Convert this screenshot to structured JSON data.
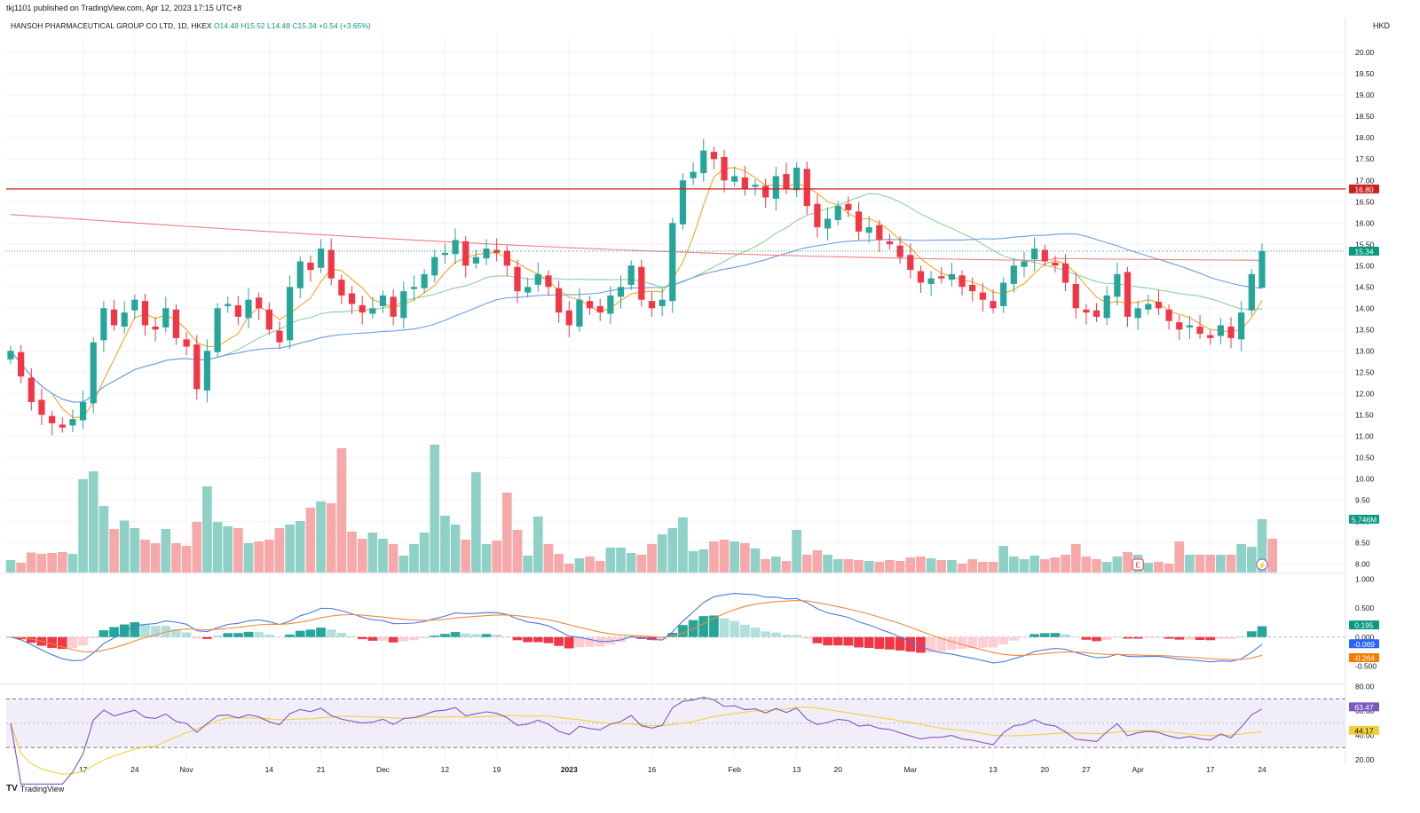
{
  "header": {
    "published": "tkj1101 published on TradingView.com, Apr 12, 2023 17:15 UTC+8",
    "symbol": "HANSOH PHARMACEUTICAL GROUP CO LTD, 1D, HKEX",
    "open": "O14.48",
    "high": "H15.52",
    "low": "L14.48",
    "close": "C15.34",
    "change": "+0.54 (+3.65%)",
    "currency": "HKD"
  },
  "footer": {
    "logo": "TV",
    "brand": "TradingView"
  },
  "colors": {
    "up": "#26a69a",
    "down": "#f23645",
    "upVol": "#8fd1c7",
    "downVol": "#f7a9a9",
    "ma_fast": "#f5a623",
    "ma_mid": "#8fd09a",
    "ma_slow": "#6e9be8",
    "ma_long": "#f08080",
    "macd": "#4a7be0",
    "signal": "#f08a3c",
    "rsi": "#7e57c2",
    "rsi_ma": "#f2d03b",
    "resistance": "#cc1f1f",
    "price_tag": "#089981",
    "macd_tag": "#2962ff",
    "signal_tag": "#f57c00",
    "rsi_tag": "#7e57c2"
  },
  "chart_data": [
    {
      "type": "candlestick",
      "title": "HANSOH PHARMACEUTICAL GROUP CO LTD, 1D, HKEX",
      "ylim": [
        7.8,
        20.4
      ],
      "y_ticks": [
        "20.00",
        "19.50",
        "19.00",
        "18.50",
        "18.00",
        "17.50",
        "17.00",
        "16.50",
        "16.00",
        "15.50",
        "15.00",
        "14.50",
        "14.00",
        "13.50",
        "13.00",
        "12.50",
        "12.00",
        "11.50",
        "11.00",
        "10.50",
        "10.00",
        "9.50",
        "9.00",
        "8.50",
        "8.00"
      ],
      "x_ticks": [
        "17",
        "24",
        "Nov",
        "14",
        "21",
        "Dec",
        "12",
        "19",
        "2023",
        "16",
        "Feb",
        "13",
        "20",
        "Mar",
        "13",
        "20",
        "27",
        "Apr",
        "17",
        "24"
      ],
      "resistance_level": 16.8,
      "resistance_label": "16.80",
      "last_price_label": "15.34",
      "volume_label": "5.746M",
      "volume_max_label": "",
      "earnings_marker": "E",
      "dividend_marker": "⚡",
      "closes": [
        13.0,
        12.4,
        11.8,
        11.5,
        11.3,
        11.2,
        11.4,
        11.8,
        13.2,
        14.0,
        13.6,
        13.9,
        14.2,
        13.6,
        13.5,
        14.0,
        13.3,
        13.1,
        12.1,
        13.0,
        14.0,
        14.1,
        13.8,
        14.2,
        14.0,
        13.5,
        13.2,
        14.5,
        15.1,
        14.9,
        15.4,
        14.7,
        14.3,
        14.1,
        13.9,
        14.0,
        14.3,
        13.8,
        14.4,
        14.5,
        14.8,
        15.2,
        15.3,
        15.6,
        15.0,
        15.2,
        15.4,
        15.3,
        15.0,
        14.4,
        14.5,
        14.8,
        14.5,
        13.9,
        13.6,
        14.2,
        14.0,
        13.9,
        14.3,
        14.5,
        15.0,
        14.2,
        14.0,
        14.2,
        16.0,
        17.0,
        17.2,
        17.7,
        17.5,
        17.0,
        17.1,
        16.8,
        16.9,
        16.6,
        17.1,
        16.8,
        17.3,
        16.4,
        15.9,
        16.1,
        16.4,
        16.3,
        15.8,
        15.9,
        15.6,
        15.5,
        15.2,
        14.9,
        14.6,
        14.7,
        14.7,
        14.8,
        14.5,
        14.4,
        14.2,
        14.0,
        14.6,
        15.0,
        15.1,
        15.4,
        15.1,
        15.0,
        14.6,
        14.0,
        13.9,
        13.8,
        14.3,
        14.8,
        13.8,
        14.0,
        14.1,
        14.0,
        13.7,
        13.5,
        13.6,
        13.4,
        13.3,
        13.6,
        13.3,
        13.9,
        14.8,
        15.34
      ],
      "volumes": [
        0.28,
        0.22,
        0.45,
        0.42,
        0.44,
        0.46,
        0.42,
        2.1,
        2.28,
        1.5,
        0.98,
        1.17,
        1.0,
        0.74,
        0.66,
        0.98,
        0.66,
        0.6,
        1.14,
        1.94,
        1.14,
        1.04,
        1.0,
        0.66,
        0.7,
        0.74,
        1.0,
        1.08,
        1.16,
        1.46,
        1.6,
        1.56,
        2.8,
        0.92,
        0.76,
        0.9,
        0.76,
        0.64,
        0.38,
        0.64,
        0.9,
        2.88,
        1.28,
        1.08,
        0.74,
        2.26,
        0.64,
        0.72,
        1.8,
        0.96,
        0.38,
        1.26,
        0.64,
        0.42,
        0.2,
        0.32,
        0.36,
        0.26,
        0.56,
        0.56,
        0.44,
        0.4,
        0.64,
        0.86,
        1.0,
        1.24,
        0.48,
        0.52,
        0.7,
        0.74,
        0.7,
        0.66,
        0.54,
        0.3,
        0.36,
        0.26,
        0.96,
        0.4,
        0.5,
        0.4,
        0.3,
        0.3,
        0.28,
        0.26,
        0.24,
        0.28,
        0.26,
        0.34,
        0.36,
        0.32,
        0.28,
        0.28,
        0.2,
        0.3,
        0.24,
        0.24,
        0.6,
        0.36,
        0.3,
        0.38,
        0.3,
        0.34,
        0.4,
        0.64,
        0.36,
        0.3,
        0.24,
        0.36,
        0.46,
        0.4,
        0.22,
        0.24,
        0.2,
        0.7,
        0.4,
        0.4,
        0.4,
        0.4,
        0.4,
        0.64,
        0.58,
        1.2,
        0.76
      ]
    },
    {
      "type": "macd",
      "ylim": [
        -0.8,
        1.1
      ],
      "y_ticks": [
        "1.000",
        "0.500",
        "0.000",
        "-0.500"
      ],
      "histogram_label": "0.195",
      "macd_label": "-0.069",
      "signal_label": "-0.264"
    },
    {
      "type": "rsi",
      "ylim": [
        20,
        82
      ],
      "y_ticks": [
        "80.00",
        "60.00",
        "40.00",
        "20.00"
      ],
      "upper_band": 70,
      "lower_band": 30,
      "rsi_label": "63.47",
      "rsi_ma_label": "44.17"
    }
  ]
}
